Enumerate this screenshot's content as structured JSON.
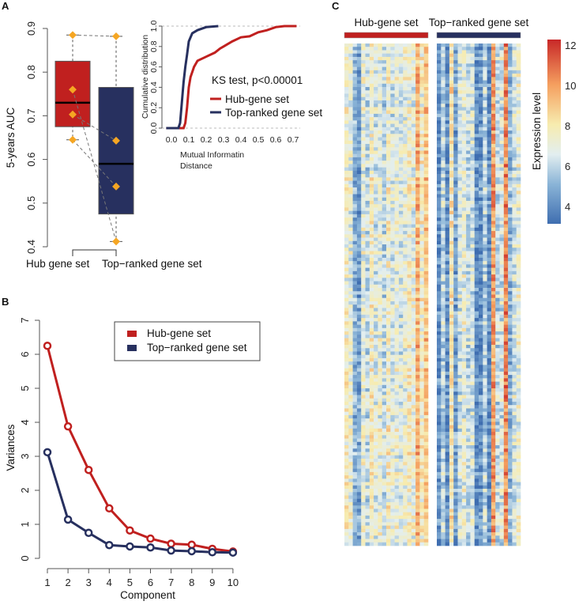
{
  "colors": {
    "hub": "#c0201f",
    "top": "#27305f",
    "point": "#f5a623"
  },
  "chart_data": [
    {
      "panel": "A",
      "type": "box",
      "ylabel": "5-years AUC",
      "ylim": [
        0.4,
        0.9
      ],
      "yticks": [
        "0.4",
        "0.5",
        "0.6",
        "0.7",
        "0.8",
        "0.9"
      ],
      "categories": [
        "Hub gene set",
        "Top−ranked gene set"
      ],
      "boxes": [
        {
          "name": "Hub gene set",
          "min": 0.645,
          "q1": 0.675,
          "median": 0.73,
          "q3": 0.825,
          "max": 0.885,
          "points": [
            0.885,
            0.76,
            0.703,
            0.645
          ]
        },
        {
          "name": "Top-ranked gene set",
          "min": 0.412,
          "q1": 0.475,
          "median": 0.59,
          "q3": 0.765,
          "max": 0.882,
          "points": [
            0.882,
            0.412,
            0.643,
            0.538
          ]
        }
      ]
    },
    {
      "panel": "A-inset",
      "type": "line",
      "ylabel": "Cumulative distribution",
      "xlabel_lines": [
        "Mutual Informatin",
        "Distance"
      ],
      "xticks": [
        "0.0",
        "0.1",
        "0.2",
        "0.3",
        "0.4",
        "0.5",
        "0.6",
        "0.7"
      ],
      "yticks": [
        "0.0",
        "0.2",
        "0.4",
        "0.6",
        "0.8",
        "1.0"
      ],
      "xlim": [
        -0.03,
        0.72
      ],
      "ylim": [
        0,
        1
      ],
      "annotation": "KS test, p<0.00001",
      "series": [
        {
          "name": "Hub-gene set",
          "points": [
            [
              -0.03,
              0
            ],
            [
              0.07,
              0
            ],
            [
              0.08,
              0.05
            ],
            [
              0.09,
              0.2
            ],
            [
              0.1,
              0.4
            ],
            [
              0.11,
              0.5
            ],
            [
              0.13,
              0.6
            ],
            [
              0.15,
              0.66
            ],
            [
              0.2,
              0.7
            ],
            [
              0.25,
              0.74
            ],
            [
              0.28,
              0.78
            ],
            [
              0.3,
              0.8
            ],
            [
              0.35,
              0.85
            ],
            [
              0.4,
              0.89
            ],
            [
              0.45,
              0.9
            ],
            [
              0.5,
              0.94
            ],
            [
              0.55,
              0.96
            ],
            [
              0.6,
              0.99
            ],
            [
              0.65,
              1
            ],
            [
              0.72,
              1
            ]
          ]
        },
        {
          "name": "Top-ranked gene set",
          "points": [
            [
              -0.03,
              0
            ],
            [
              0.04,
              0
            ],
            [
              0.05,
              0.05
            ],
            [
              0.06,
              0.25
            ],
            [
              0.07,
              0.45
            ],
            [
              0.08,
              0.6
            ],
            [
              0.09,
              0.72
            ],
            [
              0.1,
              0.85
            ],
            [
              0.12,
              0.93
            ],
            [
              0.15,
              0.96
            ],
            [
              0.2,
              0.99
            ],
            [
              0.27,
              1
            ]
          ]
        }
      ]
    },
    {
      "panel": "B",
      "type": "line",
      "xlabel": "Component",
      "ylabel": "Variances",
      "x": [
        1,
        2,
        3,
        4,
        5,
        6,
        7,
        8,
        9,
        10
      ],
      "xticks": [
        "1",
        "2",
        "3",
        "4",
        "5",
        "6",
        "7",
        "8",
        "9",
        "10"
      ],
      "yticks": [
        "0",
        "1",
        "2",
        "3",
        "4",
        "5",
        "6",
        "7"
      ],
      "ylim": [
        0,
        7
      ],
      "legend": "top-right",
      "series": [
        {
          "name": "Hub-gene set",
          "values": [
            6.25,
            3.88,
            2.6,
            1.47,
            0.82,
            0.58,
            0.43,
            0.4,
            0.28,
            0.2
          ]
        },
        {
          "name": "Top−ranked gene set",
          "values": [
            3.12,
            1.14,
            0.75,
            0.39,
            0.35,
            0.32,
            0.23,
            0.21,
            0.18,
            0.17
          ]
        }
      ]
    },
    {
      "panel": "C",
      "type": "heatmap",
      "groups": [
        {
          "name": "Hub-gene set",
          "column_means": [
            7.5,
            7,
            5,
            4.5,
            7,
            6,
            7.5,
            6.5,
            7,
            6,
            7.5,
            6.5,
            7,
            6.5,
            7,
            7.5,
            7,
            9.5,
            7.5,
            9
          ]
        },
        {
          "name": "Top−ranked gene set",
          "column_means": [
            4,
            6,
            4,
            8,
            4.5,
            6.5,
            7,
            6,
            6.5,
            4,
            4,
            6,
            4,
            10,
            6,
            6.5,
            10.5,
            5,
            6.5,
            7
          ]
        }
      ],
      "colorbar": {
        "label": "Expression level",
        "range": [
          3,
          12.3
        ],
        "ticks": [
          "4",
          "6",
          "8",
          "10",
          "12"
        ]
      }
    }
  ]
}
